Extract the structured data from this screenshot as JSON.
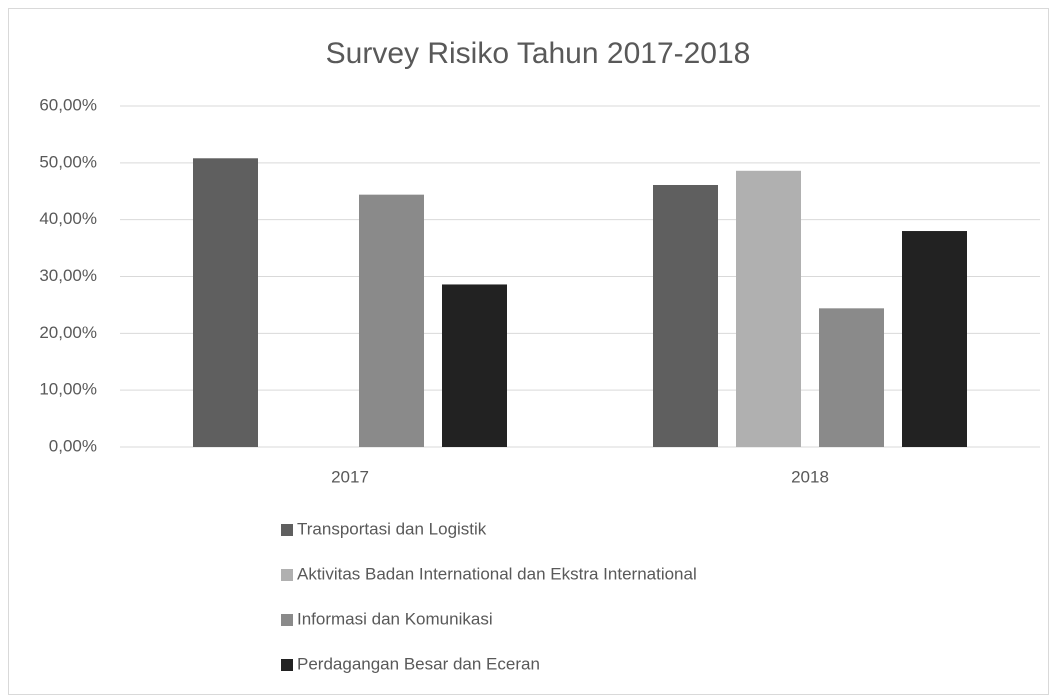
{
  "chart_data": {
    "type": "bar",
    "title": "Survey Risiko Tahun 2017-2018",
    "categories": [
      "2017",
      "2018"
    ],
    "series": [
      {
        "name": "Transportasi dan Logistik",
        "color": "#5f5f5f",
        "values": [
          50.8,
          46.1
        ]
      },
      {
        "name": "Aktivitas Badan International dan Ekstra International",
        "color": "#b0b0b0",
        "values": [
          null,
          48.6
        ]
      },
      {
        "name": "Informasi dan Komunikasi",
        "color": "#8a8a8a",
        "values": [
          44.4,
          24.4
        ]
      },
      {
        "name": "Perdagangan Besar dan Eceran",
        "color": "#222222",
        "values": [
          28.6,
          38.0
        ]
      }
    ],
    "ylim": [
      0,
      60
    ],
    "yticks": [
      {
        "value": 0,
        "label": "0,00%"
      },
      {
        "value": 10,
        "label": "10,00%"
      },
      {
        "value": 20,
        "label": "20,00%"
      },
      {
        "value": 30,
        "label": "30,00%"
      },
      {
        "value": 40,
        "label": "40,00%"
      },
      {
        "value": 50,
        "label": "50,00%"
      },
      {
        "value": 60,
        "label": "60,00%"
      }
    ],
    "grid": true,
    "legend": "bottom"
  }
}
